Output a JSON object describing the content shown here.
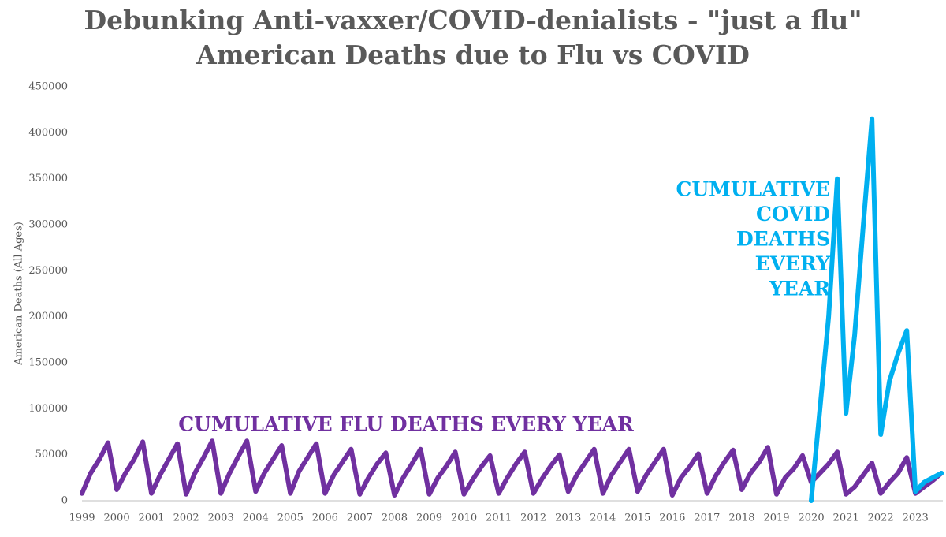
{
  "chart_data": {
    "type": "line",
    "title": [
      "Debunking Anti-vaxxer/COVID-denialists - \"just a flu\"",
      "American Deaths due to Flu vs COVID"
    ],
    "y_label": "American Deaths (All Ages)",
    "categories": [
      "1999",
      null,
      null,
      null,
      "2000",
      null,
      null,
      null,
      "2001",
      null,
      null,
      null,
      "2002",
      null,
      null,
      null,
      "2003",
      null,
      null,
      null,
      "2004",
      null,
      null,
      null,
      "2005",
      null,
      null,
      null,
      "2006",
      null,
      null,
      null,
      "2007",
      null,
      null,
      null,
      "2008",
      null,
      null,
      null,
      "2009",
      null,
      null,
      null,
      "2010",
      null,
      null,
      null,
      "2011",
      null,
      null,
      null,
      "2012",
      null,
      null,
      null,
      "2013",
      null,
      null,
      null,
      "2014",
      null,
      null,
      null,
      "2015",
      null,
      null,
      null,
      "2016",
      null,
      null,
      null,
      "2017",
      null,
      null,
      null,
      "2018",
      null,
      null,
      null,
      "2019",
      null,
      null,
      null,
      "2020",
      null,
      null,
      null,
      "2021",
      null,
      null,
      null,
      "2022",
      null,
      null,
      null,
      "2023",
      null,
      null,
      null
    ],
    "series": [
      {
        "name": "Flu",
        "color": "#7030a0",
        "values": [
          8000,
          30000,
          45000,
          63000,
          12000,
          30000,
          45000,
          64000,
          8000,
          28000,
          45000,
          62000,
          7000,
          30000,
          47000,
          65000,
          8000,
          30000,
          48000,
          65000,
          10000,
          30000,
          45000,
          60000,
          8000,
          32000,
          47000,
          62000,
          8000,
          28000,
          42000,
          56000,
          7000,
          25000,
          40000,
          52000,
          6000,
          25000,
          40000,
          56000,
          7000,
          25000,
          38000,
          53000,
          7000,
          23000,
          37000,
          49000,
          8000,
          25000,
          40000,
          53000,
          8000,
          24000,
          38000,
          50000,
          10000,
          28000,
          42000,
          56000,
          8000,
          28000,
          42000,
          56000,
          10000,
          28000,
          42000,
          56000,
          6000,
          25000,
          37000,
          51000,
          8000,
          27000,
          42000,
          55000,
          12000,
          30000,
          42000,
          58000,
          7000,
          25000,
          35000,
          49000,
          20000,
          30000,
          40000,
          53000,
          7000,
          15000,
          28000,
          41000,
          8000,
          20000,
          30000,
          47000,
          8000,
          15000,
          22000,
          30000
        ]
      },
      {
        "name": "COVID",
        "color": "#00b0f0",
        "values": [
          null,
          null,
          null,
          null,
          null,
          null,
          null,
          null,
          null,
          null,
          null,
          null,
          null,
          null,
          null,
          null,
          null,
          null,
          null,
          null,
          null,
          null,
          null,
          null,
          null,
          null,
          null,
          null,
          null,
          null,
          null,
          null,
          null,
          null,
          null,
          null,
          null,
          null,
          null,
          null,
          null,
          null,
          null,
          null,
          null,
          null,
          null,
          null,
          null,
          null,
          null,
          null,
          null,
          null,
          null,
          null,
          null,
          null,
          null,
          null,
          null,
          null,
          null,
          null,
          null,
          null,
          null,
          null,
          null,
          null,
          null,
          null,
          null,
          null,
          null,
          null,
          null,
          null,
          null,
          null,
          null,
          null,
          null,
          null,
          0,
          100000,
          200000,
          350000,
          95000,
          180000,
          300000,
          415000,
          72000,
          130000,
          160000,
          185000,
          10000,
          20000,
          25000,
          30000
        ]
      }
    ],
    "annotations": [
      {
        "lines": [
          "CUMULATIVE FLU DEATHS EVERY YEAR"
        ],
        "color": "#7030a0"
      },
      {
        "lines": [
          "CUMULATIVE",
          "COVID",
          "DEATHS",
          "EVERY",
          "YEAR"
        ],
        "color": "#00b0f0"
      }
    ],
    "ylim": [
      0,
      450000
    ],
    "yticks": [
      0,
      50000,
      100000,
      150000,
      200000,
      250000,
      300000,
      350000,
      400000,
      450000
    ]
  }
}
